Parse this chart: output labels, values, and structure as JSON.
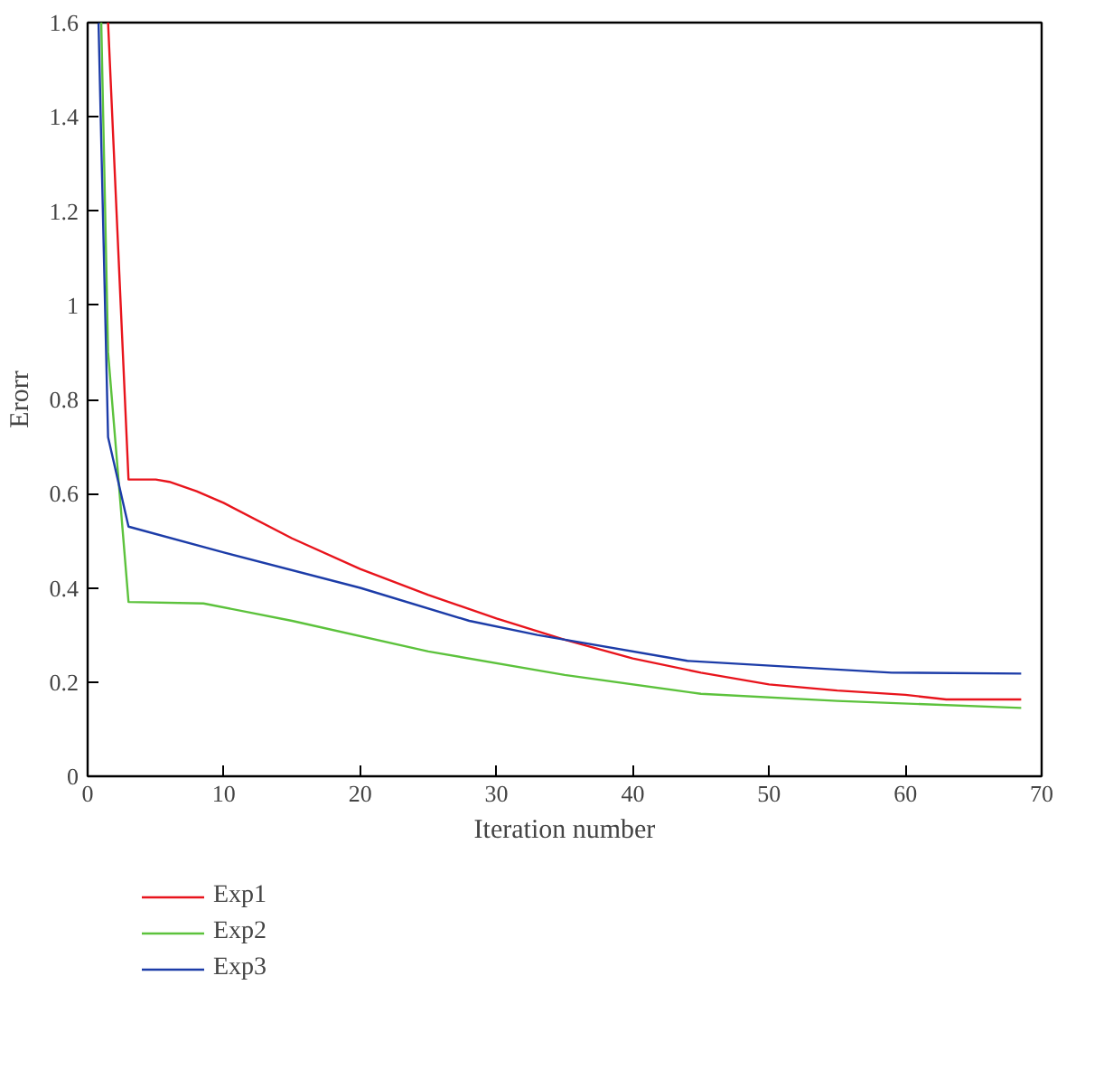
{
  "chart_data": {
    "type": "line",
    "xlabel": "Iteration number",
    "ylabel": "Erorr",
    "xlim": [
      0,
      70
    ],
    "ylim": [
      0,
      1.6
    ],
    "xticks": [
      0,
      10,
      20,
      30,
      40,
      50,
      60,
      70
    ],
    "yticks": [
      0,
      0.2,
      0.4,
      0.6,
      0.8,
      1,
      1.2,
      1.4,
      1.6
    ],
    "grid": false,
    "legend": "bottom left",
    "marker": "none",
    "line_style": "solid",
    "series": [
      {
        "name": "Exp1",
        "color": "#e8141c",
        "x": [
          1.5,
          3,
          5,
          6,
          8,
          10,
          15,
          20,
          25,
          30,
          35,
          40,
          45,
          50,
          55,
          60,
          63,
          68.5
        ],
        "values": [
          1.6,
          0.63,
          0.63,
          0.625,
          0.605,
          0.58,
          0.505,
          0.44,
          0.385,
          0.335,
          0.29,
          0.25,
          0.22,
          0.195,
          0.182,
          0.173,
          0.163,
          0.163
        ]
      },
      {
        "name": "Exp2",
        "color": "#5cc23c",
        "x": [
          1,
          1.5,
          3,
          8.5,
          15,
          25,
          35,
          45,
          55,
          68.5
        ],
        "values": [
          1.6,
          0.9,
          0.37,
          0.367,
          0.33,
          0.265,
          0.215,
          0.175,
          0.16,
          0.145
        ]
      },
      {
        "name": "Exp3",
        "color": "#1c3ca8",
        "x": [
          0.8,
          1.5,
          3,
          10,
          20,
          28,
          33,
          44,
          59,
          68.5
        ],
        "values": [
          1.6,
          0.72,
          0.53,
          0.475,
          0.4,
          0.33,
          0.3,
          0.245,
          0.22,
          0.218
        ]
      }
    ]
  }
}
